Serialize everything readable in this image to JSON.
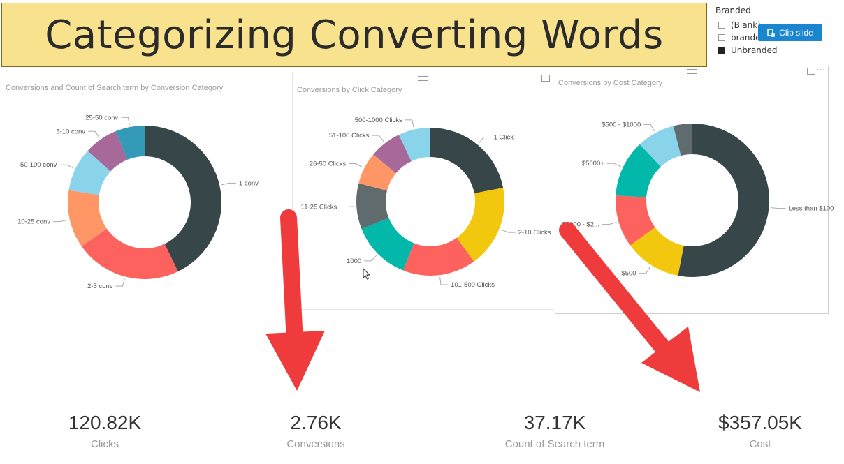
{
  "title": "Categorizing Converting Words",
  "slicer": {
    "title": "Branded",
    "items": [
      {
        "label": "(Blank)",
        "checked": false
      },
      {
        "label": "brande",
        "checked": false
      },
      {
        "label": "Unbranded",
        "checked": true
      }
    ]
  },
  "clip_button": {
    "label": "Clip slide",
    "icon": "clip-icon"
  },
  "chart_data": [
    {
      "type": "pie",
      "title": "Conversions and Count of Search term by Conversion Category",
      "categories": [
        "1 conv",
        "2-5 conv",
        "10-25 conv",
        "50-100 conv",
        "5-10 conv",
        "25-50 conv"
      ],
      "values": [
        42,
        22,
        12,
        9,
        7,
        6
      ],
      "colors": [
        "#374649",
        "#fd625e",
        "#fe9666",
        "#8ad4eb",
        "#a66999",
        "#3599b8"
      ]
    },
    {
      "type": "pie",
      "title": "Conversions by Click Category",
      "categories": [
        "1 Click",
        "2-10 Clicks",
        "101-500 Clicks",
        "1000",
        "11-25 Clicks",
        "26-50 Clicks",
        "51-100 Clicks",
        "500-1000 Clicks"
      ],
      "values": [
        22,
        18,
        16,
        13,
        10,
        7,
        7,
        7
      ],
      "colors": [
        "#374649",
        "#f2c80f",
        "#fd625e",
        "#01b8aa",
        "#5f6b6d",
        "#fe9666",
        "#a66999",
        "#8ad4eb"
      ]
    },
    {
      "type": "pie",
      "title": "Conversions by Cost Category",
      "categories": [
        "Less than $100",
        "$500",
        "$1000 - $2...",
        "$5000+",
        "$500 - $1000",
        ""
      ],
      "values": [
        53,
        12,
        11,
        12,
        8,
        4
      ],
      "colors": [
        "#374649",
        "#f2c80f",
        "#fd625e",
        "#01b8aa",
        "#8ad4eb",
        "#5f6b6d"
      ]
    }
  ],
  "kpis": [
    {
      "value": "120.82K",
      "label": "Clicks"
    },
    {
      "value": "2.76K",
      "label": "Conversions"
    },
    {
      "value": "37.17K",
      "label": "Count of Search term"
    },
    {
      "value": "$357.05K",
      "label": "Cost"
    }
  ],
  "colors": {
    "banner": "#f8e28e",
    "arrow": "#ef3b3b",
    "button": "#1a86d0"
  }
}
